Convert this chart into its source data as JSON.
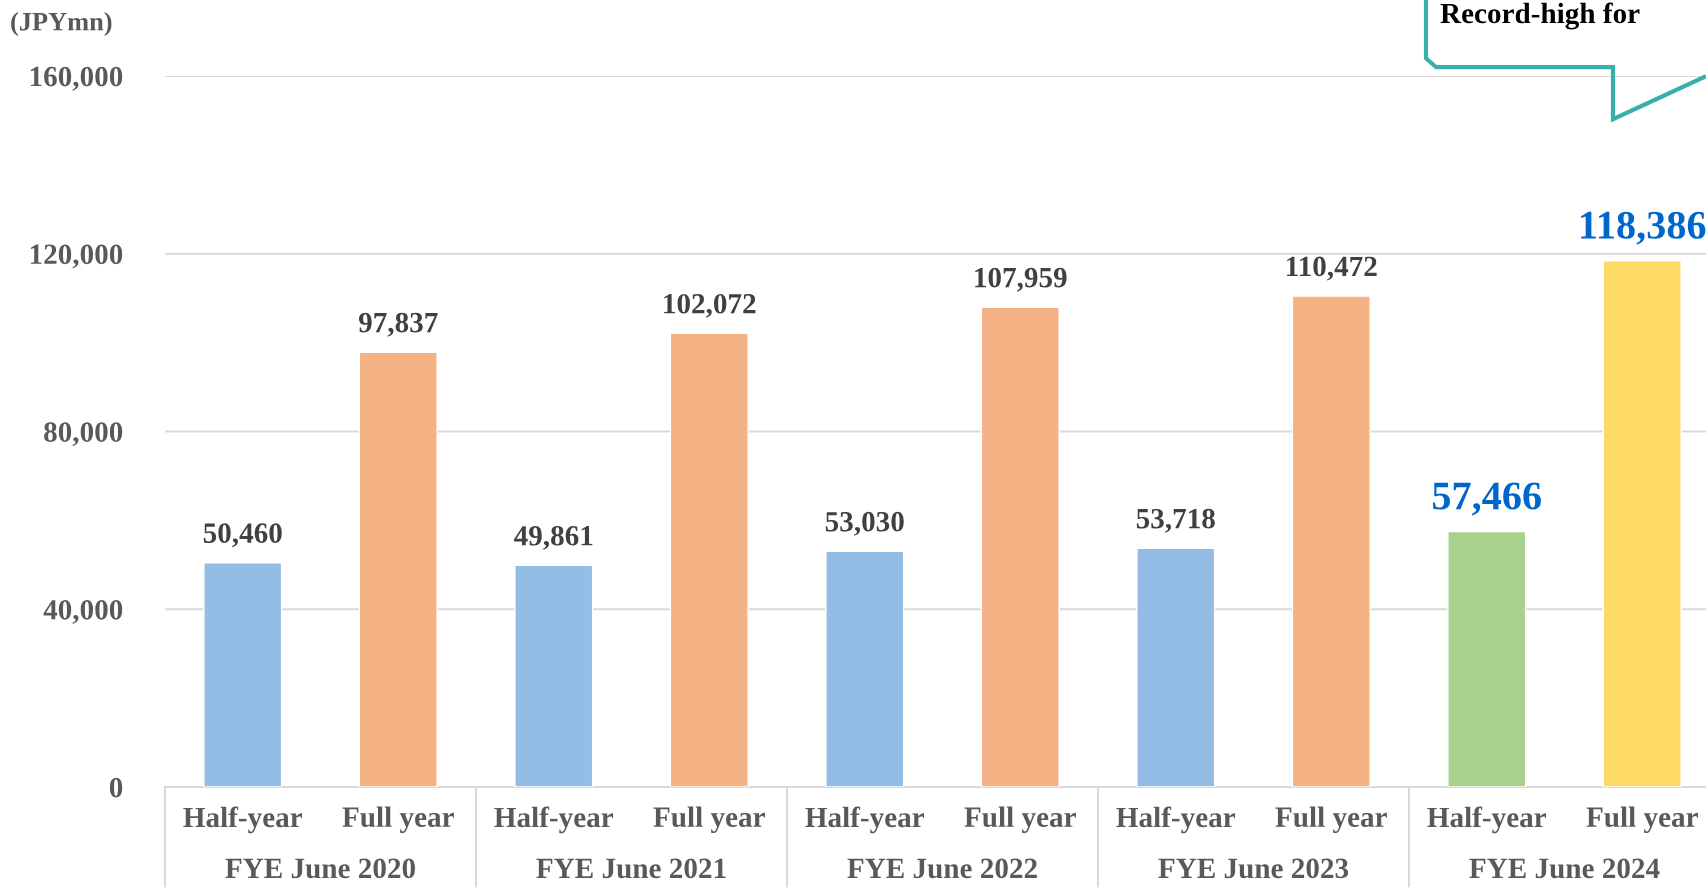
{
  "chart_data": {
    "type": "bar",
    "ylabel": "(JPYmn)",
    "categories": [
      "Half-year",
      "Full year",
      "Half-year",
      "Full year",
      "Half-year",
      "Full year",
      "Half-year",
      "Full year",
      "Half-year",
      "Full year"
    ],
    "values": [
      50460,
      97837,
      49861,
      102072,
      53030,
      107959,
      53718,
      110472,
      57466,
      118386
    ],
    "colors": [
      "#93bde4",
      "#f4b183",
      "#93bde4",
      "#f4b183",
      "#93bde4",
      "#f4b183",
      "#93bde4",
      "#f4b183",
      "#a9d18e",
      "#ffd966"
    ],
    "value_labels": [
      "50,460",
      "97,837",
      "49,861",
      "102,072",
      "53,030",
      "107,959",
      "53,718",
      "110,472",
      "57,466",
      "118,386"
    ],
    "ylim": [
      0,
      160000
    ],
    "yticks": [
      {
        "value": 0,
        "label": "0"
      },
      {
        "value": 40000,
        "label": "40,000"
      },
      {
        "value": 80000,
        "label": "80,000"
      },
      {
        "value": 120000,
        "label": "120,000"
      },
      {
        "value": 160000,
        "label": "160,000"
      }
    ],
    "grid": "y",
    "annotations": [
      "FYE June 2020",
      "FYE June 2021",
      "FYE June 2022",
      "FYE June 2023",
      "FYE June 2024",
      "Record-high for"
    ]
  }
}
